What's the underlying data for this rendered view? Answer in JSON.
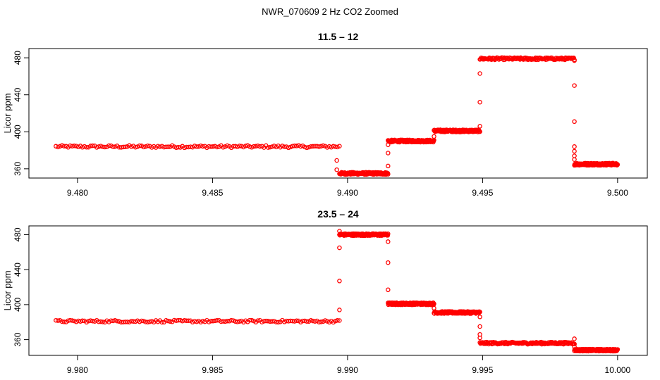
{
  "figure_title": "NWR_070609  2 Hz CO2 Zoomed",
  "chart_data": [
    {
      "type": "scatter",
      "title": "11.5 – 12",
      "xlabel": "",
      "ylabel": "Licor ppm",
      "xlim": [
        9.4782,
        9.5011
      ],
      "ylim": [
        350,
        490
      ],
      "xticks": [
        "9.480",
        "9.485",
        "9.490",
        "9.495",
        "9.500"
      ],
      "xtick_values": [
        9.48,
        9.485,
        9.49,
        9.495,
        9.5
      ],
      "yticks": [
        "360",
        "400",
        "440",
        "480"
      ],
      "ytick_values": [
        360,
        400,
        440,
        480
      ],
      "grid": false,
      "marker": "open-circle",
      "color": "#ff0000",
      "series": [
        {
          "segments": [
            {
              "x": [
                9.4792,
                9.4897
              ],
              "y": 384
            },
            {
              "x": [
                9.4897,
                9.4915
              ],
              "y": 355
            },
            {
              "x": [
                9.4915,
                9.4932
              ],
              "y": 390
            },
            {
              "x": [
                9.4932,
                9.4949
              ],
              "y": 401
            },
            {
              "x": [
                9.4949,
                9.4984
              ],
              "y": 479
            },
            {
              "x": [
                9.4984,
                9.5
              ],
              "y": 365
            }
          ],
          "transitions": [
            {
              "x": 9.4896,
              "y": [
                369,
                359
              ]
            },
            {
              "x": 9.4915,
              "y": [
                363,
                377,
                386
              ]
            },
            {
              "x": 9.4932,
              "y": [
                395
              ]
            },
            {
              "x": 9.4949,
              "y": [
                406,
                432,
                463
              ]
            },
            {
              "x": 9.4984,
              "y": [
                477,
                450,
                411,
                384,
                379,
                374,
                370
              ]
            }
          ]
        }
      ]
    },
    {
      "type": "scatter",
      "title": "23.5 – 24",
      "xlabel": "",
      "ylabel": "Licor ppm",
      "xlim": [
        9.9782,
        10.0011
      ],
      "ylim": [
        342,
        490
      ],
      "xticks": [
        "9.980",
        "9.985",
        "9.990",
        "9.995",
        "10.000"
      ],
      "xtick_values": [
        9.98,
        9.985,
        9.99,
        9.995,
        10.0
      ],
      "yticks": [
        "360",
        "400",
        "440",
        "480"
      ],
      "ytick_values": [
        360,
        400,
        440,
        480
      ],
      "grid": false,
      "marker": "open-circle",
      "color": "#ff0000",
      "series": [
        {
          "segments": [
            {
              "x": [
                9.9792,
                9.9897
              ],
              "y": 381
            },
            {
              "x": [
                9.9897,
                9.9915
              ],
              "y": 480
            },
            {
              "x": [
                9.9915,
                9.9932
              ],
              "y": 401
            },
            {
              "x": [
                9.9932,
                9.9949
              ],
              "y": 391
            },
            {
              "x": [
                9.9949,
                9.9984
              ],
              "y": 356
            },
            {
              "x": [
                9.9984,
                10.0
              ],
              "y": 348
            }
          ],
          "transitions": [
            {
              "x": 9.9897,
              "y": [
                394,
                427,
                465,
                484
              ]
            },
            {
              "x": 9.9915,
              "y": [
                472,
                448,
                417
              ]
            },
            {
              "x": 9.9932,
              "y": [
                396
              ]
            },
            {
              "x": 9.9949,
              "y": [
                386,
                375,
                366,
                362
              ]
            },
            {
              "x": 9.9984,
              "y": [
                361,
                355,
                352
              ]
            }
          ]
        }
      ]
    }
  ]
}
